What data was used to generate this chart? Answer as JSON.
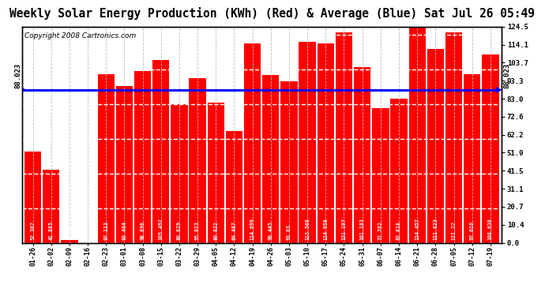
{
  "title": "Weekly Solar Energy Production (KWh) (Red) & Average (Blue) Sat Jul 26 05:49",
  "copyright": "Copyright 2008 Cartronics.com",
  "average": 88.023,
  "average_label": "88.023",
  "categories": [
    "01-26",
    "02-02",
    "02-09",
    "02-16",
    "02-23",
    "03-01",
    "03-08",
    "03-15",
    "03-22",
    "03-29",
    "04-05",
    "04-12",
    "04-19",
    "04-26",
    "05-03",
    "05-10",
    "05-17",
    "05-24",
    "05-31",
    "06-07",
    "06-14",
    "06-21",
    "06-28",
    "07-05",
    "07-12",
    "07-19"
  ],
  "values": [
    52.307,
    41.885,
    1.413,
    0.0,
    97.113,
    90.404,
    98.896,
    105.492,
    80.029,
    95.023,
    80.822,
    64.487,
    114.699,
    96.445,
    93.03,
    115.568,
    114.958,
    121.107,
    101.183,
    77.762,
    82.818,
    124.457,
    111.823,
    121.22,
    97.016,
    108.638
  ],
  "bar_color": "#FF0000",
  "avg_line_color": "#0000FF",
  "bg_color": "#FFFFFF",
  "grid_color": "#BBBBBB",
  "title_color": "#000000",
  "ylim": [
    0,
    124.5
  ],
  "yticks_right": [
    0.0,
    10.4,
    20.7,
    31.1,
    41.5,
    51.9,
    62.2,
    72.6,
    83.0,
    93.3,
    103.7,
    114.1,
    124.5
  ],
  "title_fontsize": 10.5,
  "copyright_fontsize": 6.5,
  "bar_label_fontsize": 5.5
}
